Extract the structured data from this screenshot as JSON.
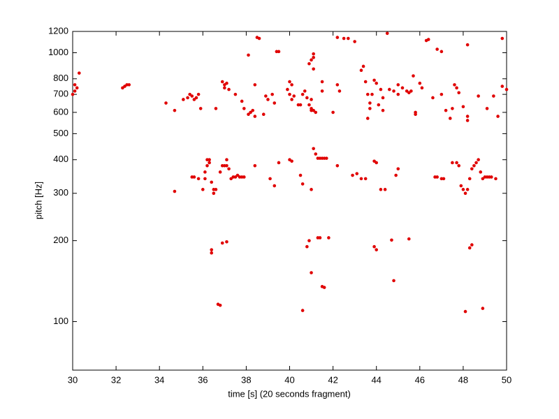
{
  "chart_data": {
    "type": "scatter",
    "xlabel": "time [s] (20 seconds fragment)",
    "ylabel": "pitch [Hz]",
    "color": "#e00000",
    "ylog": true,
    "grid": false,
    "xlim": [
      30,
      50
    ],
    "xticks": [
      30,
      32,
      34,
      36,
      38,
      40,
      42,
      44,
      46,
      48,
      50
    ],
    "ylim": [
      66,
      1200
    ],
    "yticks": [
      100,
      200,
      300,
      400,
      500,
      600,
      700,
      800,
      1000,
      1200
    ],
    "x": [
      30.0,
      30.1,
      30.1,
      30.2,
      30.3,
      32.3,
      32.4,
      32.5,
      32.6,
      34.3,
      34.7,
      35.1,
      35.3,
      35.4,
      35.5,
      35.6,
      35.7,
      35.8,
      35.9,
      36.6,
      36.9,
      37.0,
      37.0,
      37.1,
      37.2,
      37.5,
      37.8,
      37.9,
      38.1,
      38.1,
      38.2,
      38.3,
      38.4,
      38.4,
      38.5,
      38.6,
      38.8,
      38.9,
      39.0,
      39.2,
      39.3,
      39.4,
      39.5,
      39.9,
      40.0,
      40.0,
      40.1,
      40.1,
      40.2,
      40.4,
      40.5,
      40.6,
      40.7,
      40.8,
      40.9,
      41.0,
      41.1,
      41.1,
      41.1,
      40.9,
      41.0,
      41.5,
      41.0,
      41.5,
      41.0,
      41.1,
      41.2,
      42.2,
      42.5,
      42.7,
      42.2,
      42.3,
      42.0,
      43.0,
      43.3,
      43.4,
      43.5,
      43.6,
      43.7,
      43.6,
      43.7,
      43.8,
      43.9,
      44.0,
      44.1,
      44.2,
      44.3,
      44.3,
      44.5,
      44.6,
      44.8,
      45.0,
      45.0,
      45.2,
      45.4,
      45.5,
      45.6,
      45.7,
      45.8,
      45.8,
      46.0,
      46.1,
      46.3,
      46.4,
      46.6,
      46.8,
      47.0,
      47.0,
      47.2,
      47.4,
      47.5,
      47.6,
      47.7,
      47.8,
      48.0,
      48.2,
      48.2,
      48.2,
      48.7,
      49.1,
      49.4,
      49.6,
      49.8,
      49.8,
      50.0,
      34.7,
      35.5,
      35.6,
      35.8,
      36.0,
      36.1,
      36.1,
      36.2,
      36.2,
      36.3,
      36.3,
      36.4,
      36.5,
      36.5,
      36.6,
      36.8,
      36.9,
      37.0,
      37.1,
      37.1,
      37.2,
      37.3,
      37.4,
      37.5,
      37.6,
      37.7,
      37.8,
      37.9,
      38.4,
      39.1,
      39.3,
      39.5,
      40.0,
      40.1,
      40.5,
      40.6,
      41.0,
      41.1,
      41.2,
      41.3,
      41.4,
      41.5,
      41.6,
      41.7,
      42.2,
      42.9,
      43.1,
      43.3,
      43.5,
      43.9,
      44.0,
      44.2,
      44.4,
      44.9,
      45.0,
      46.7,
      46.8,
      47.0,
      47.1,
      47.5,
      47.7,
      47.8,
      47.9,
      48.0,
      48.1,
      48.2,
      48.3,
      48.4,
      48.5,
      48.6,
      48.7,
      48.8,
      48.9,
      49.0,
      49.1,
      49.2,
      49.3,
      49.5,
      36.4,
      36.4,
      36.7,
      36.8,
      36.9,
      37.1,
      40.6,
      40.8,
      40.9,
      41.0,
      41.3,
      41.4,
      41.5,
      41.6,
      41.8,
      43.9,
      44.0,
      44.7,
      44.8,
      45.5,
      48.1,
      48.3,
      48.4,
      48.9
    ],
    "values": [
      700,
      720,
      760,
      740,
      840,
      740,
      750,
      760,
      760,
      650,
      610,
      670,
      680,
      700,
      690,
      670,
      680,
      700,
      620,
      620,
      780,
      760,
      740,
      770,
      730,
      700,
      660,
      620,
      590,
      980,
      600,
      610,
      580,
      760,
      1140,
      1130,
      590,
      690,
      670,
      700,
      650,
      1010,
      1010,
      730,
      780,
      700,
      670,
      760,
      690,
      640,
      640,
      700,
      720,
      680,
      910,
      940,
      990,
      960,
      870,
      640,
      610,
      780,
      670,
      720,
      620,
      610,
      600,
      1140,
      1130,
      1130,
      760,
      720,
      600,
      1100,
      860,
      890,
      780,
      700,
      620,
      570,
      650,
      700,
      790,
      770,
      640,
      730,
      680,
      610,
      1180,
      730,
      720,
      700,
      760,
      740,
      720,
      710,
      720,
      820,
      600,
      590,
      770,
      740,
      1110,
      1120,
      680,
      1030,
      1010,
      700,
      610,
      570,
      620,
      760,
      740,
      710,
      630,
      560,
      580,
      1070,
      690,
      620,
      690,
      580,
      750,
      1130,
      730,
      305,
      345,
      345,
      340,
      310,
      340,
      360,
      380,
      400,
      400,
      390,
      330,
      310,
      300,
      310,
      360,
      380,
      380,
      380,
      400,
      370,
      340,
      345,
      345,
      350,
      345,
      345,
      345,
      380,
      340,
      320,
      390,
      400,
      395,
      350,
      325,
      310,
      440,
      420,
      405,
      405,
      405,
      405,
      405,
      380,
      350,
      355,
      340,
      340,
      395,
      390,
      310,
      310,
      350,
      370,
      345,
      345,
      340,
      340,
      390,
      390,
      380,
      320,
      310,
      300,
      310,
      340,
      370,
      380,
      390,
      400,
      360,
      340,
      345,
      345,
      345,
      345,
      340,
      185,
      180,
      116,
      115,
      196,
      198,
      110,
      190,
      200,
      152,
      205,
      205,
      135,
      134,
      205,
      190,
      185,
      201,
      142,
      203,
      109,
      188,
      193,
      112
    ]
  }
}
